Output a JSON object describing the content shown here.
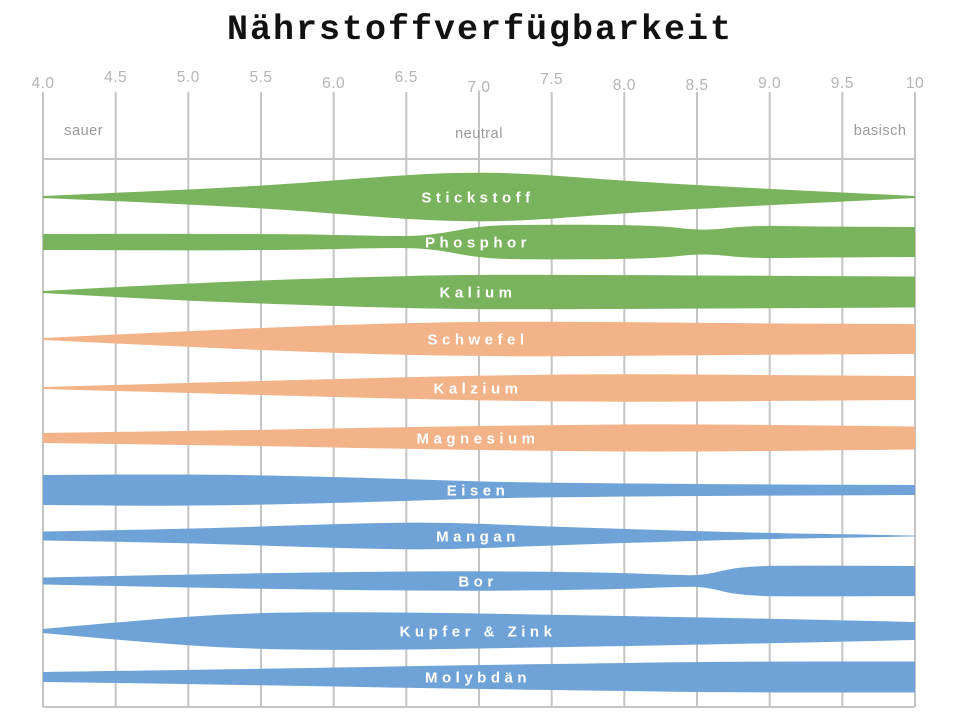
{
  "title": "Nährstoffverfügbarkeit",
  "colors": {
    "green": "#7ab35d",
    "orange": "#f3b389",
    "blue": "#6fa3d7",
    "grid": "#c4c4c4",
    "tick_text": "#b4b4b4",
    "zone_text": "#9a9a9a",
    "title_text": "#111111",
    "band_label_text": "#ffffff"
  },
  "axis": {
    "tick_labels": [
      "4.0",
      "4.5",
      "5.0",
      "5.5",
      "6.0",
      "6.5",
      "7.0",
      "7.5",
      "8.0",
      "8.5",
      "9.0",
      "9.5",
      "10"
    ],
    "tick_values": [
      4,
      4.5,
      5,
      5.5,
      6,
      6.5,
      7,
      7.5,
      8,
      8.5,
      9,
      9.5,
      10
    ],
    "zones": [
      {
        "label": "sauer",
        "ph": 4.28
      },
      {
        "label": "neutral",
        "ph": 7.0
      },
      {
        "label": "basisch",
        "ph": 9.76
      }
    ]
  },
  "chart_data": {
    "type": "area",
    "variant": "nutrient-availability-bands (band thickness = availability vs. pH)",
    "title": "Nährstoffverfügbarkeit",
    "xlabel": "",
    "ylabel": "",
    "xlim": [
      4,
      10
    ],
    "grid": "vertical-on",
    "profile_format": "[pH, half-thickness-px]",
    "series": [
      {
        "name": "Stickstoff",
        "color": "green",
        "profile": [
          [
            4,
            1
          ],
          [
            4.8,
            6
          ],
          [
            5.6,
            12
          ],
          [
            6.3,
            20
          ],
          [
            6.8,
            24.5
          ],
          [
            7.3,
            24
          ],
          [
            8,
            16
          ],
          [
            9,
            8
          ],
          [
            10,
            1
          ]
        ]
      },
      {
        "name": "Phosphor",
        "color": "green",
        "profile": [
          [
            4,
            8
          ],
          [
            5.6,
            8.5
          ],
          [
            6.3,
            6
          ],
          [
            6.65,
            6
          ],
          [
            7.0,
            16
          ],
          [
            7.3,
            17.5
          ],
          [
            8.2,
            17
          ],
          [
            8.55,
            11
          ],
          [
            8.85,
            16.5
          ],
          [
            9.3,
            15.5
          ],
          [
            10,
            15
          ]
        ]
      },
      {
        "name": "Kalium",
        "color": "green",
        "profile": [
          [
            4,
            1
          ],
          [
            5,
            9
          ],
          [
            6,
            14
          ],
          [
            6.6,
            16.5
          ],
          [
            7.2,
            17.5
          ],
          [
            8.5,
            16.5
          ],
          [
            10,
            15.5
          ]
        ]
      },
      {
        "name": "Schwefel",
        "color": "orange",
        "profile": [
          [
            4,
            1
          ],
          [
            5,
            8
          ],
          [
            6,
            14
          ],
          [
            6.8,
            17
          ],
          [
            7.6,
            17.5
          ],
          [
            9,
            15.5
          ],
          [
            10,
            15
          ]
        ]
      },
      {
        "name": "Kalzium",
        "color": "orange",
        "profile": [
          [
            4,
            1
          ],
          [
            5,
            5
          ],
          [
            6,
            9
          ],
          [
            7,
            12.5
          ],
          [
            7.9,
            14
          ],
          [
            9,
            13
          ],
          [
            10,
            12
          ]
        ]
      },
      {
        "name": "Magnesium",
        "color": "orange",
        "profile": [
          [
            4,
            5
          ],
          [
            5.5,
            8
          ],
          [
            6.5,
            11
          ],
          [
            7.5,
            13
          ],
          [
            8.5,
            14
          ],
          [
            10,
            11.5
          ]
        ]
      },
      {
        "name": "Eisen",
        "color": "blue",
        "profile": [
          [
            4,
            15
          ],
          [
            4.9,
            16
          ],
          [
            5.6,
            14.5
          ],
          [
            6.5,
            11
          ],
          [
            7.1,
            8
          ],
          [
            8,
            6.5
          ],
          [
            9,
            5.5
          ],
          [
            10,
            5
          ]
        ]
      },
      {
        "name": "Mangan",
        "color": "blue",
        "profile": [
          [
            4,
            4.5
          ],
          [
            5,
            7
          ],
          [
            6,
            12
          ],
          [
            6.7,
            14
          ],
          [
            7.4,
            10
          ],
          [
            8.2,
            6
          ],
          [
            9,
            3
          ],
          [
            9.6,
            1.5
          ],
          [
            10,
            0.4
          ]
        ]
      },
      {
        "name": "Bor",
        "color": "blue",
        "profile": [
          [
            4,
            3.5
          ],
          [
            5,
            6.5
          ],
          [
            6,
            9
          ],
          [
            7,
            10
          ],
          [
            7.9,
            8.5
          ],
          [
            8.35,
            6
          ],
          [
            8.55,
            5.5
          ],
          [
            8.8,
            15
          ],
          [
            9.3,
            15.5
          ],
          [
            10,
            15
          ]
        ]
      },
      {
        "name": "Kupfer & Zink",
        "color": "blue",
        "profile": [
          [
            4,
            2
          ],
          [
            4.6,
            10
          ],
          [
            5.4,
            18.5
          ],
          [
            6.4,
            19
          ],
          [
            7.4,
            16.5
          ],
          [
            8.4,
            14
          ],
          [
            9.4,
            11
          ],
          [
            10,
            9
          ]
        ]
      },
      {
        "name": "Molybdän",
        "color": "blue",
        "profile": [
          [
            4,
            5
          ],
          [
            5,
            7
          ],
          [
            6,
            9.5
          ],
          [
            7,
            12
          ],
          [
            8,
            14
          ],
          [
            8.7,
            15.5
          ],
          [
            10,
            15.5
          ]
        ]
      }
    ]
  }
}
